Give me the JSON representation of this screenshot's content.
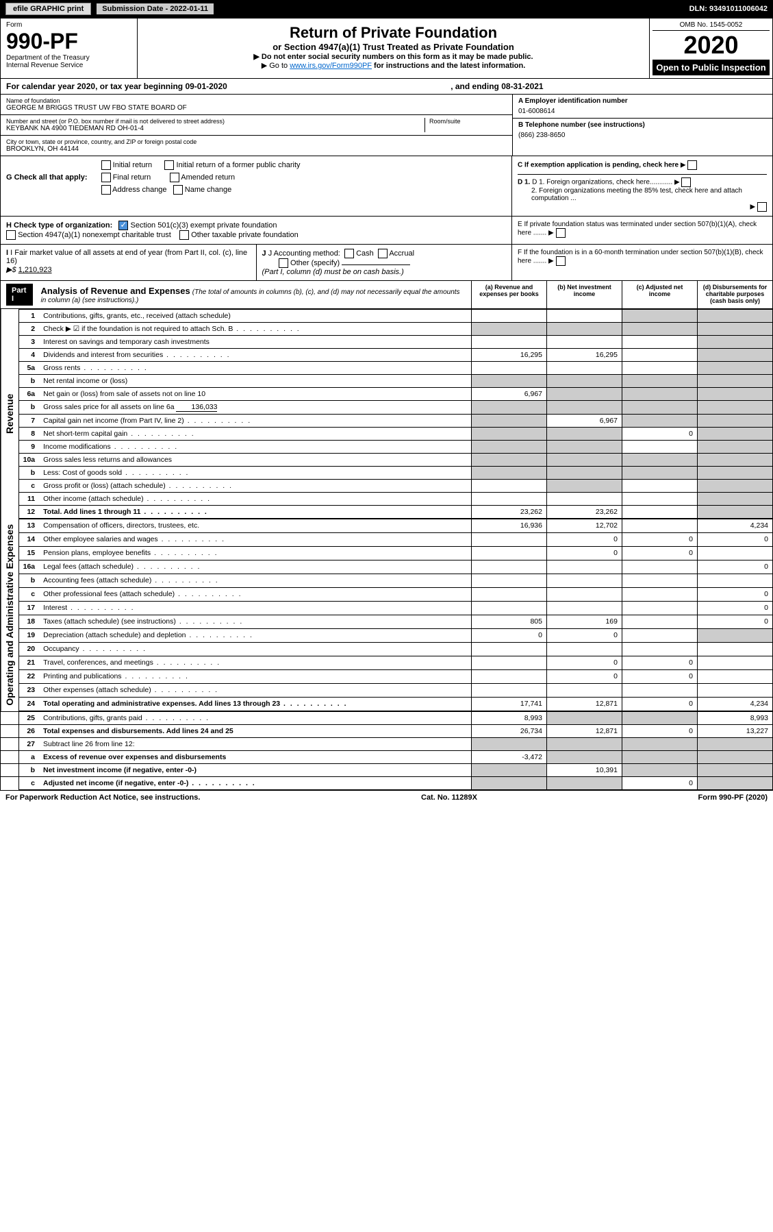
{
  "header": {
    "efile": "efile GRAPHIC print",
    "submission_label": "Submission Date - 2022-01-11",
    "dln_label": "DLN: 93491011006042",
    "omb": "OMB No. 1545-0052",
    "form_label": "Form",
    "form_num": "990-PF",
    "dept": "Department of the Treasury",
    "irs": "Internal Revenue Service",
    "title": "Return of Private Foundation",
    "subtitle": "or Section 4947(a)(1) Trust Treated as Private Foundation",
    "instr1": "▶ Do not enter social security numbers on this form as it may be made public.",
    "instr2_pre": "▶ Go to ",
    "instr2_link": "www.irs.gov/Form990PF",
    "instr2_post": " for instructions and the latest information.",
    "year": "2020",
    "open": "Open to Public Inspection"
  },
  "cal": {
    "text_pre": "For calendar year 2020, or tax year beginning 09-01-2020",
    "text_mid": ", and ending 08-31-2021"
  },
  "org": {
    "name_label": "Name of foundation",
    "name": "GEORGE M BRIGGS TRUST UW FBO STATE BOARD OF",
    "addr_label": "Number and street (or P.O. box number if mail is not delivered to street address)",
    "addr": "KEYBANK NA 4900 TIEDEMAN RD OH-01-4",
    "room_label": "Room/suite",
    "city_label": "City or town, state or province, country, and ZIP or foreign postal code",
    "city": "BROOKLYN, OH  44144",
    "ein_label": "A Employer identification number",
    "ein": "01-6008614",
    "phone_label": "B Telephone number (see instructions)",
    "phone": "(866) 238-8650",
    "c_label": "C If exemption application is pending, check here",
    "d1": "D 1. Foreign organizations, check here............",
    "d2": "2. Foreign organizations meeting the 85% test, check here and attach computation ...",
    "e_label": "E  If private foundation status was terminated under section 507(b)(1)(A), check here .......",
    "f_label": "F  If the foundation is in a 60-month termination under section 507(b)(1)(B), check here ......."
  },
  "g": {
    "label": "G Check all that apply:",
    "initial": "Initial return",
    "initial_former": "Initial return of a former public charity",
    "final": "Final return",
    "amended": "Amended return",
    "addr_change": "Address change",
    "name_change": "Name change"
  },
  "h": {
    "label": "H Check type of organization:",
    "opt1": "Section 501(c)(3) exempt private foundation",
    "opt2": "Section 4947(a)(1) nonexempt charitable trust",
    "opt3": "Other taxable private foundation"
  },
  "i": {
    "label": "I Fair market value of all assets at end of year (from Part II, col. (c), line 16)",
    "arrow": "▶$",
    "value": "1,210,923"
  },
  "j": {
    "label": "J Accounting method:",
    "cash": "Cash",
    "accrual": "Accrual",
    "other": "Other (specify)",
    "note": "(Part I, column (d) must be on cash basis.)"
  },
  "part1": {
    "label": "Part I",
    "title": "Analysis of Revenue and Expenses",
    "note": "(The total of amounts in columns (b), (c), and (d) may not necessarily equal the amounts in column (a) (see instructions).)",
    "col_a": "(a)   Revenue and expenses per books",
    "col_b": "(b)   Net investment income",
    "col_c": "(c)   Adjusted net income",
    "col_d": "(d)   Disbursements for charitable purposes (cash basis only)"
  },
  "sections": {
    "revenue": "Revenue",
    "opex": "Operating and Administrative Expenses"
  },
  "rows": [
    {
      "n": "1",
      "d": "Contributions, gifts, grants, etc., received (attach schedule)",
      "a": "",
      "b": "",
      "c": "S",
      "dv": "S"
    },
    {
      "n": "2",
      "d": "Check ▶ ☑ if the foundation is not required to attach Sch. B",
      "dots": true,
      "a": "S",
      "b": "S",
      "c": "S",
      "dv": "S"
    },
    {
      "n": "3",
      "d": "Interest on savings and temporary cash investments",
      "a": "",
      "b": "",
      "c": "",
      "dv": "S"
    },
    {
      "n": "4",
      "d": "Dividends and interest from securities",
      "dots": true,
      "a": "16,295",
      "b": "16,295",
      "c": "",
      "dv": "S"
    },
    {
      "n": "5a",
      "d": "Gross rents",
      "dots": true,
      "a": "",
      "b": "",
      "c": "",
      "dv": "S"
    },
    {
      "n": "b",
      "d": "Net rental income or (loss)",
      "a": "S",
      "b": "S",
      "c": "S",
      "dv": "S"
    },
    {
      "n": "6a",
      "d": "Net gain or (loss) from sale of assets not on line 10",
      "a": "6,967",
      "b": "S",
      "c": "S",
      "dv": "S"
    },
    {
      "n": "b",
      "d": "Gross sales price for all assets on line 6a",
      "inline": "136,033",
      "a": "S",
      "b": "S",
      "c": "S",
      "dv": "S"
    },
    {
      "n": "7",
      "d": "Capital gain net income (from Part IV, line 2)",
      "dots": true,
      "a": "S",
      "b": "6,967",
      "c": "S",
      "dv": "S"
    },
    {
      "n": "8",
      "d": "Net short-term capital gain",
      "dots": true,
      "a": "S",
      "b": "S",
      "c": "0",
      "dv": "S"
    },
    {
      "n": "9",
      "d": "Income modifications",
      "dots": true,
      "a": "S",
      "b": "S",
      "c": "",
      "dv": "S"
    },
    {
      "n": "10a",
      "d": "Gross sales less returns and allowances",
      "a": "S",
      "b": "S",
      "c": "S",
      "dv": "S"
    },
    {
      "n": "b",
      "d": "Less: Cost of goods sold",
      "dots": true,
      "a": "S",
      "b": "S",
      "c": "S",
      "dv": "S"
    },
    {
      "n": "c",
      "d": "Gross profit or (loss) (attach schedule)",
      "dots": true,
      "a": "",
      "b": "S",
      "c": "",
      "dv": "S"
    },
    {
      "n": "11",
      "d": "Other income (attach schedule)",
      "dots": true,
      "a": "",
      "b": "",
      "c": "",
      "dv": "S"
    },
    {
      "n": "12",
      "d": "Total. Add lines 1 through 11",
      "bold": true,
      "dots": true,
      "a": "23,262",
      "b": "23,262",
      "c": "",
      "dv": "S"
    },
    {
      "n": "13",
      "d": "Compensation of officers, directors, trustees, etc.",
      "a": "16,936",
      "b": "12,702",
      "c": "",
      "dv": "4,234"
    },
    {
      "n": "14",
      "d": "Other employee salaries and wages",
      "dots": true,
      "a": "",
      "b": "0",
      "c": "0",
      "dv": "0"
    },
    {
      "n": "15",
      "d": "Pension plans, employee benefits",
      "dots": true,
      "a": "",
      "b": "0",
      "c": "0",
      "dv": ""
    },
    {
      "n": "16a",
      "d": "Legal fees (attach schedule)",
      "dots": true,
      "a": "",
      "b": "",
      "c": "",
      "dv": "0"
    },
    {
      "n": "b",
      "d": "Accounting fees (attach schedule)",
      "dots": true,
      "a": "",
      "b": "",
      "c": "",
      "dv": ""
    },
    {
      "n": "c",
      "d": "Other professional fees (attach schedule)",
      "dots": true,
      "a": "",
      "b": "",
      "c": "",
      "dv": "0"
    },
    {
      "n": "17",
      "d": "Interest",
      "dots": true,
      "a": "",
      "b": "",
      "c": "",
      "dv": "0"
    },
    {
      "n": "18",
      "d": "Taxes (attach schedule) (see instructions)",
      "dots": true,
      "a": "805",
      "b": "169",
      "c": "",
      "dv": "0"
    },
    {
      "n": "19",
      "d": "Depreciation (attach schedule) and depletion",
      "dots": true,
      "a": "0",
      "b": "0",
      "c": "",
      "dv": "S"
    },
    {
      "n": "20",
      "d": "Occupancy",
      "dots": true,
      "a": "",
      "b": "",
      "c": "",
      "dv": ""
    },
    {
      "n": "21",
      "d": "Travel, conferences, and meetings",
      "dots": true,
      "a": "",
      "b": "0",
      "c": "0",
      "dv": ""
    },
    {
      "n": "22",
      "d": "Printing and publications",
      "dots": true,
      "a": "",
      "b": "0",
      "c": "0",
      "dv": ""
    },
    {
      "n": "23",
      "d": "Other expenses (attach schedule)",
      "dots": true,
      "a": "",
      "b": "",
      "c": "",
      "dv": ""
    },
    {
      "n": "24",
      "d": "Total operating and administrative expenses. Add lines 13 through 23",
      "bold": true,
      "dots": true,
      "a": "17,741",
      "b": "12,871",
      "c": "0",
      "dv": "4,234"
    },
    {
      "n": "25",
      "d": "Contributions, gifts, grants paid",
      "dots": true,
      "a": "8,993",
      "b": "S",
      "c": "S",
      "dv": "8,993"
    },
    {
      "n": "26",
      "d": "Total expenses and disbursements. Add lines 24 and 25",
      "bold": true,
      "a": "26,734",
      "b": "12,871",
      "c": "0",
      "dv": "13,227"
    },
    {
      "n": "27",
      "d": "Subtract line 26 from line 12:",
      "a": "S",
      "b": "S",
      "c": "S",
      "dv": "S"
    },
    {
      "n": "a",
      "d": "Excess of revenue over expenses and disbursements",
      "bold": true,
      "a": "-3,472",
      "b": "S",
      "c": "S",
      "dv": "S"
    },
    {
      "n": "b",
      "d": "Net investment income (if negative, enter -0-)",
      "bold": true,
      "a": "S",
      "b": "10,391",
      "c": "S",
      "dv": "S"
    },
    {
      "n": "c",
      "d": "Adjusted net income (if negative, enter -0-)",
      "bold": true,
      "dots": true,
      "a": "S",
      "b": "S",
      "c": "0",
      "dv": "S"
    }
  ],
  "footer": {
    "left": "For Paperwork Reduction Act Notice, see instructions.",
    "mid": "Cat. No. 11289X",
    "right": "Form 990-PF (2020)"
  },
  "colors": {
    "link": "#0066cc",
    "shaded": "#cccccc",
    "check": "#4a90d9"
  }
}
